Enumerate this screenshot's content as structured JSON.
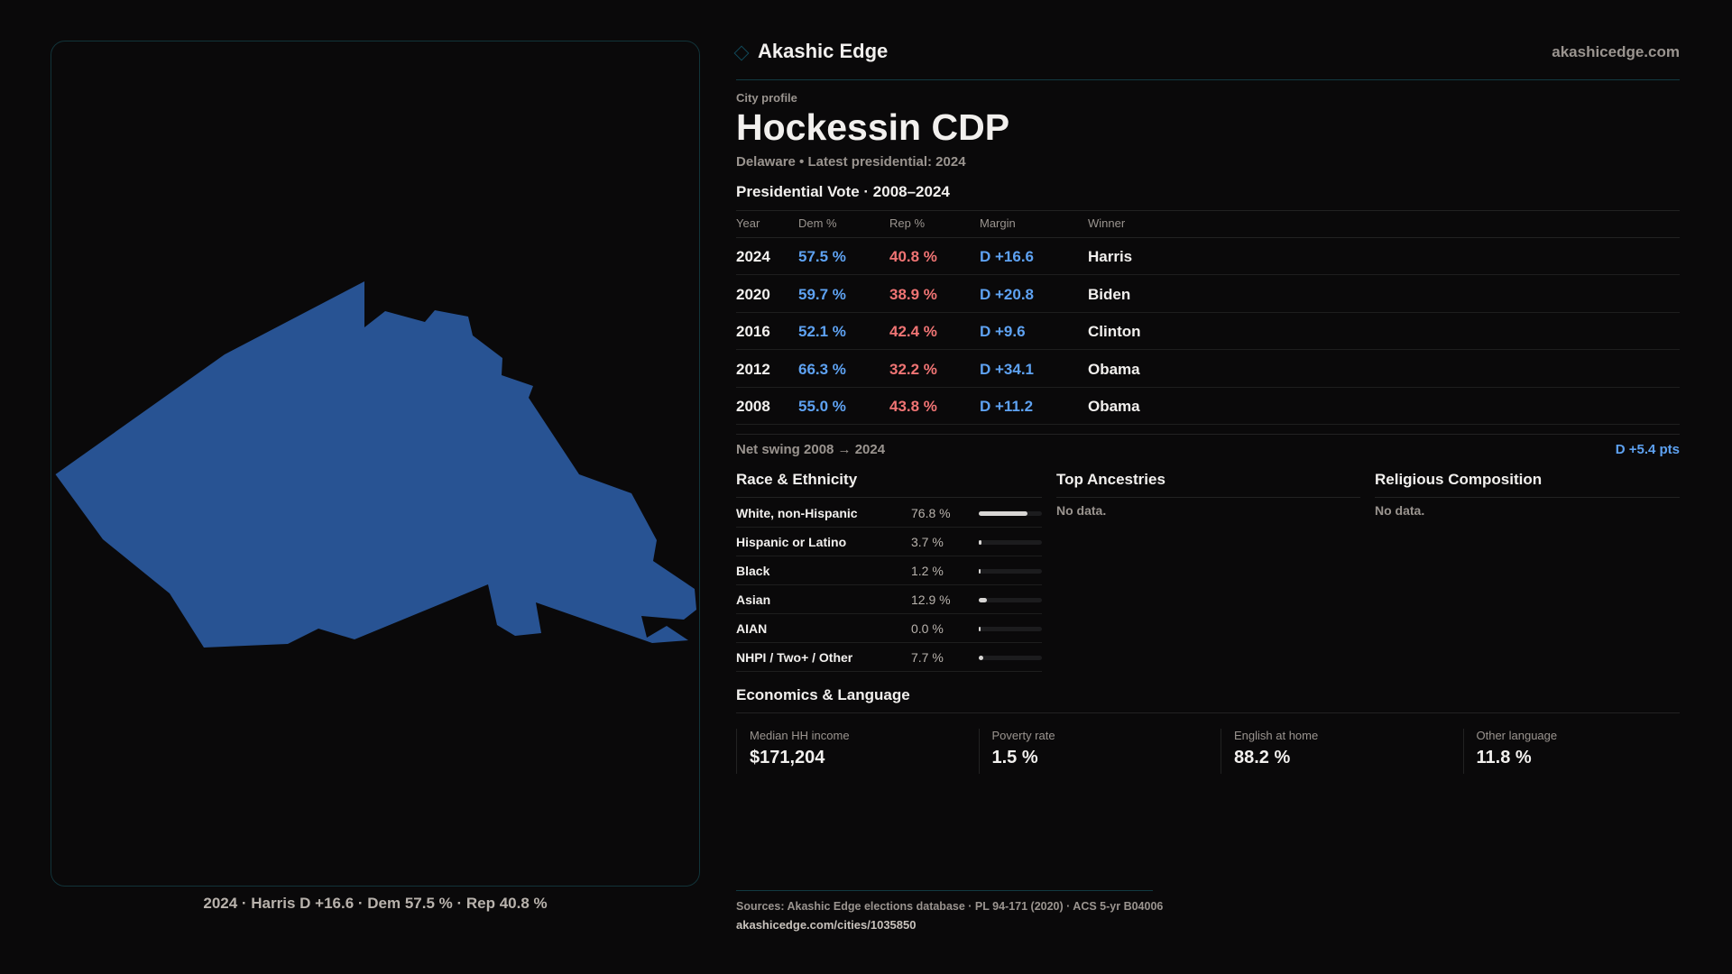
{
  "map": {
    "fill_color": "#285393",
    "caption": "2024 · Harris D +16.6 · Dem 57.5 % · Rep 40.8 %"
  },
  "header": {
    "brand": "Akashic Edge",
    "site": "akashicedge.com",
    "logo_icon": "diamond-icon"
  },
  "profile": {
    "kicker": "City profile",
    "title": "Hockessin CDP",
    "subtitle": "Delaware • Latest presidential: 2024"
  },
  "votes": {
    "heading": "Presidential Vote · 2008–2024",
    "columns": [
      "Year",
      "Dem %",
      "Rep %",
      "Margin",
      "Winner"
    ],
    "rows": [
      {
        "year": "2024",
        "dem": "57.5 %",
        "rep": "40.8 %",
        "margin": "D +16.6",
        "winner": "Harris"
      },
      {
        "year": "2020",
        "dem": "59.7 %",
        "rep": "38.9 %",
        "margin": "D +20.8",
        "winner": "Biden"
      },
      {
        "year": "2016",
        "dem": "52.1 %",
        "rep": "42.4 %",
        "margin": "D +9.6",
        "winner": "Clinton"
      },
      {
        "year": "2012",
        "dem": "66.3 %",
        "rep": "32.2 %",
        "margin": "D +34.1",
        "winner": "Obama"
      },
      {
        "year": "2008",
        "dem": "55.0 %",
        "rep": "43.8 %",
        "margin": "D +11.2",
        "winner": "Obama"
      }
    ],
    "net_swing_label": "Net swing 2008 → 2024",
    "net_swing_value": "D +5.4 pts"
  },
  "race": {
    "heading": "Race & Ethnicity",
    "items": [
      {
        "label": "White, non-Hispanic",
        "value": "76.8 %",
        "pct": 76.8
      },
      {
        "label": "Hispanic or Latino",
        "value": "3.7 %",
        "pct": 3.7
      },
      {
        "label": "Black",
        "value": "1.2 %",
        "pct": 1.2
      },
      {
        "label": "Asian",
        "value": "12.9 %",
        "pct": 12.9
      },
      {
        "label": "AIAN",
        "value": "0.0 %",
        "pct": 0.0
      },
      {
        "label": "NHPI / Two+ / Other",
        "value": "7.7 %",
        "pct": 7.7
      }
    ]
  },
  "ancestries": {
    "heading": "Top Ancestries",
    "empty": "No data."
  },
  "religion": {
    "heading": "Religious Composition",
    "empty": "No data."
  },
  "economics": {
    "heading": "Economics & Language",
    "cards": [
      {
        "label": "Median HH income",
        "value": "$171,204"
      },
      {
        "label": "Poverty rate",
        "value": "1.5 %"
      },
      {
        "label": "English at home",
        "value": "88.2 %"
      },
      {
        "label": "Other language",
        "value": "11.8 %"
      }
    ]
  },
  "footer": {
    "sources": "Sources: Akashic Edge elections database · PL 94-171 (2020) · ACS 5-yr B04006",
    "url": "akashicedge.com/cities/1035850"
  },
  "colors": {
    "dem": "#5ea2f2",
    "rep": "#f07474",
    "accent": "#11495a"
  }
}
